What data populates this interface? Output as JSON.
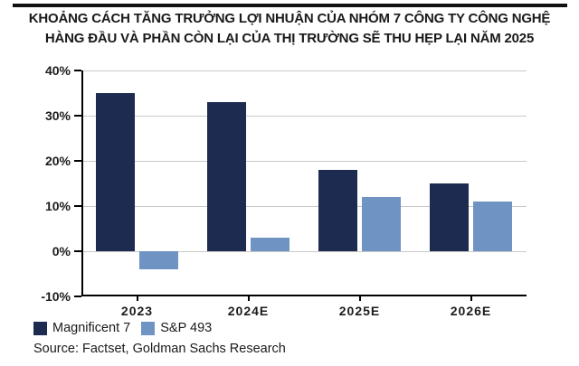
{
  "title": {
    "line1": "KHOẢNG CÁCH TĂNG TRƯỞNG LỢI NHUẬN CỦA NHÓM 7 CÔNG TY CÔNG NGHỆ",
    "line2": "HÀNG ĐẦU VÀ PHẦN CÒN LẠI CỦA THỊ TRƯỜNG SẼ THU HẸP LẠI NĂM 2025"
  },
  "chart_data": {
    "type": "bar",
    "categories": [
      "2023",
      "2024E",
      "2025E",
      "2026E"
    ],
    "series": [
      {
        "name": "Magnificent 7",
        "color": "#1e2b50",
        "values": [
          35,
          33,
          18,
          15
        ]
      },
      {
        "name": "S&P 493",
        "color": "#6f93c3",
        "values": [
          -4,
          3,
          12,
          11
        ]
      }
    ],
    "title": "",
    "xlabel": "",
    "ylabel": "",
    "ylim": [
      -10,
      40
    ],
    "ytick_step": 10,
    "ytick_labels": [
      "40%",
      "30%",
      "20%",
      "10%",
      "0%",
      "-10%"
    ],
    "grid": true,
    "legend_position": "bottom-left",
    "colors": {
      "gridline": "#c9c9c9",
      "axis": "#000000",
      "tick_text": "#1c1c1c"
    }
  },
  "source": "Source: Factset, Goldman Sachs Research"
}
